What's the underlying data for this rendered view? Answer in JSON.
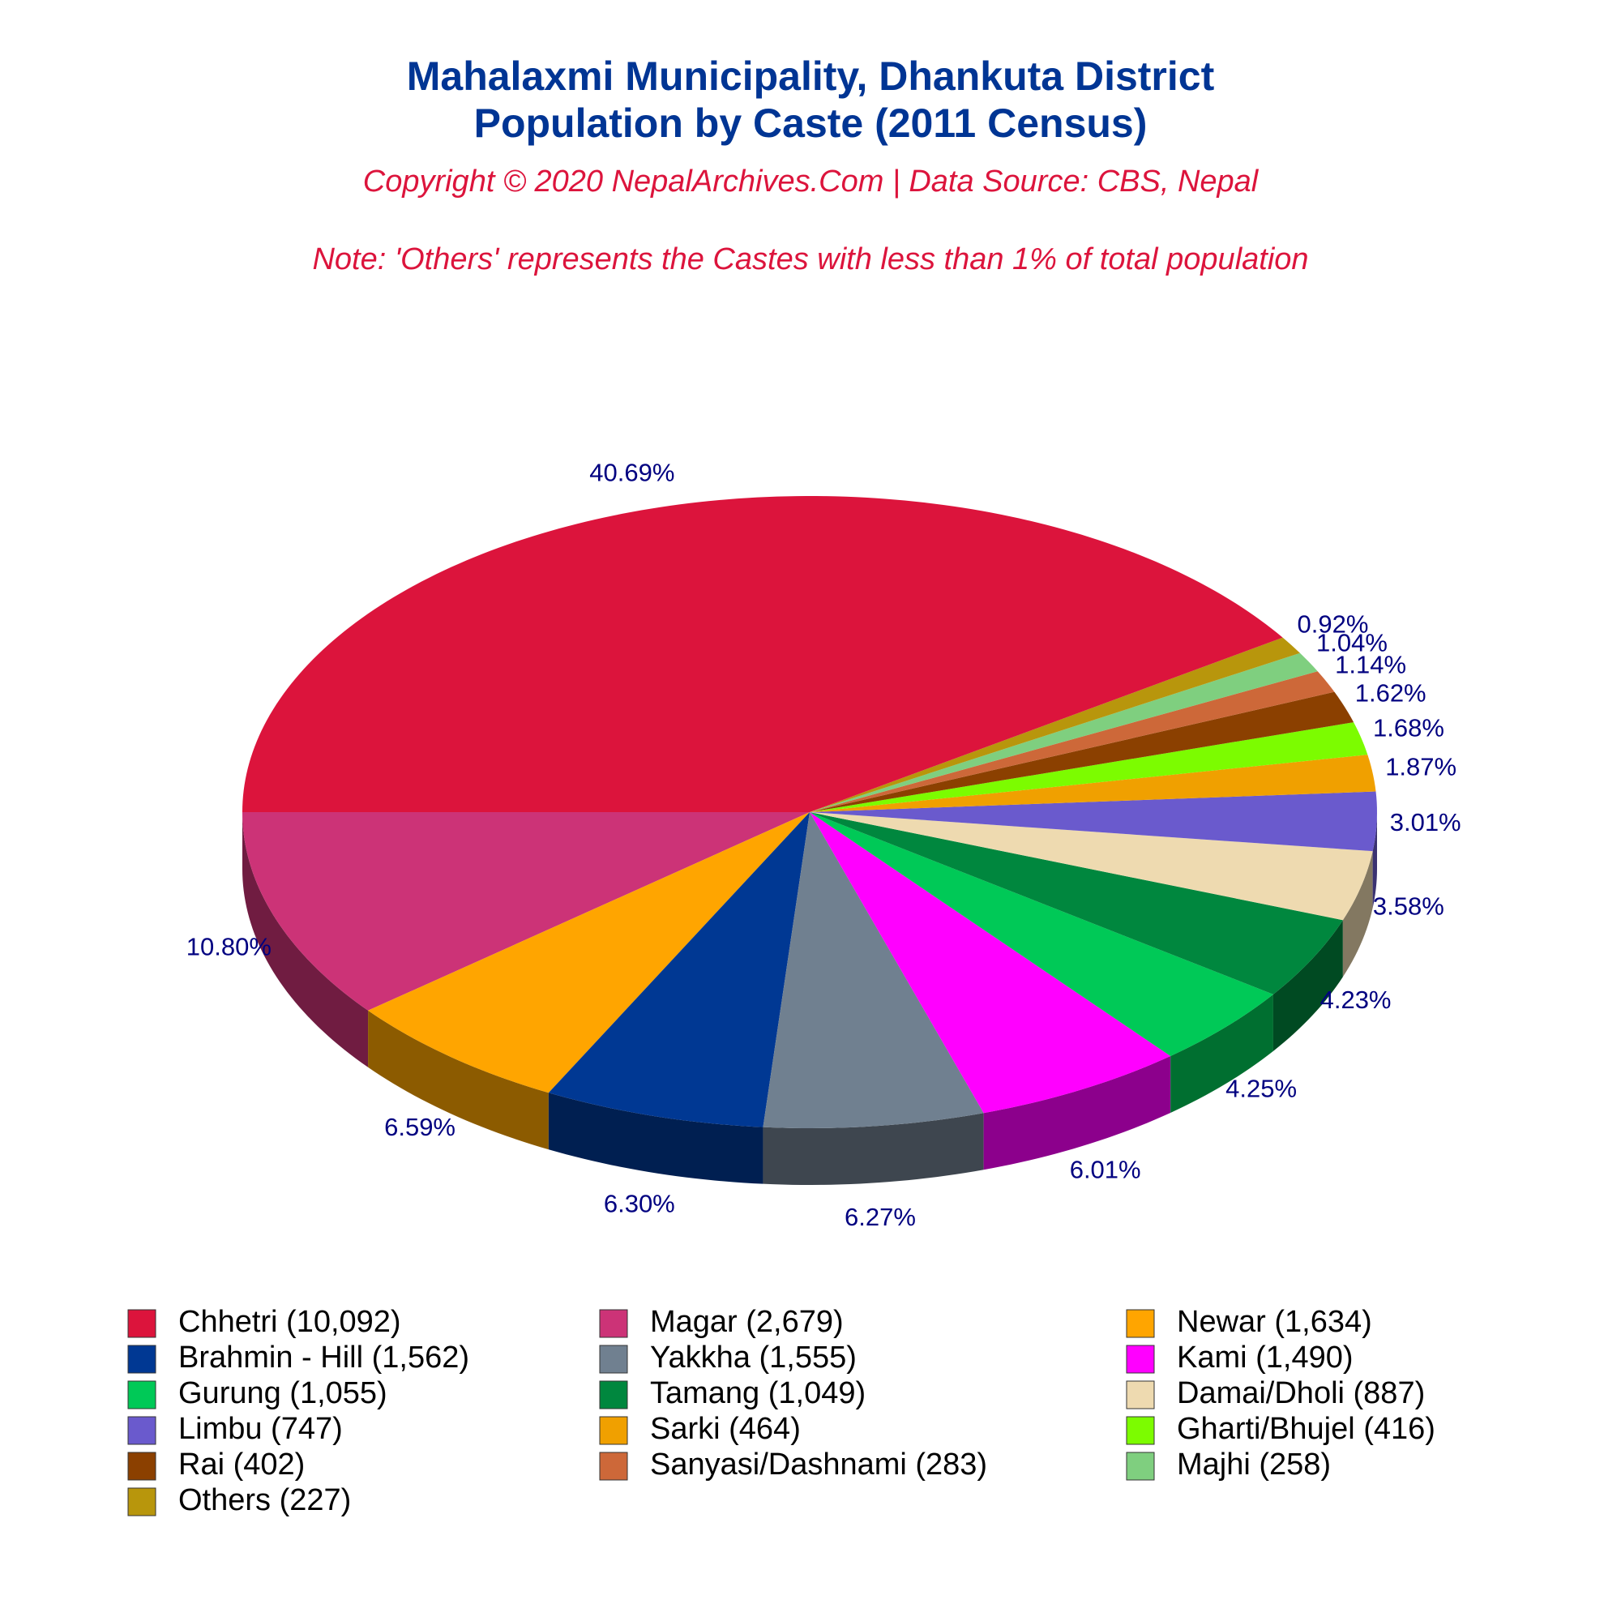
{
  "chart_data": {
    "type": "pie3d",
    "title": [
      "Mahalaxmi Municipality, Dhankuta District",
      "Population by Caste (2011 Census)"
    ],
    "subtitle": "Copyright © 2020 NepalArchives.Com | Data Source: CBS, Nepal",
    "note": "Note: 'Others' represents the Castes with less than 1% of total population",
    "categories": [
      "Chhetri (10,092)",
      "Magar (2,679)",
      "Newar (1,634)",
      "Brahmin - Hill (1,562)",
      "Yakkha (1,555)",
      "Kami (1,490)",
      "Gurung (1,055)",
      "Tamang (1,049)",
      "Damai/Dholi (887)",
      "Limbu (747)",
      "Sarki (464)",
      "Gharti/Bhujel (416)",
      "Rai (402)",
      "Sanyasi/Dashnami (283)",
      "Majhi (258)",
      "Others (227)"
    ],
    "values": [
      40.69,
      10.8,
      6.59,
      6.3,
      6.27,
      6.01,
      4.25,
      4.23,
      3.58,
      3.01,
      1.87,
      1.68,
      1.62,
      1.14,
      1.04,
      0.92
    ],
    "value_labels": [
      "40.69%",
      "10.80%",
      "6.59%",
      "6.30%",
      "6.27%",
      "6.01%",
      "4.25%",
      "4.23%",
      "3.58%",
      "3.01%",
      "1.87%",
      "1.68%",
      "1.62%",
      "1.14%",
      "1.04%",
      "0.92%"
    ],
    "colors": [
      "#dc143c",
      "#cc3377",
      "#ffa500",
      "#003893",
      "#708090",
      "#ff00ff",
      "#00c957",
      "#00873e",
      "#eedab0",
      "#6a5acd",
      "#f0a000",
      "#7cfc00",
      "#8b4000",
      "#cd6839",
      "#7fcf7f",
      "#b8960c"
    ]
  }
}
